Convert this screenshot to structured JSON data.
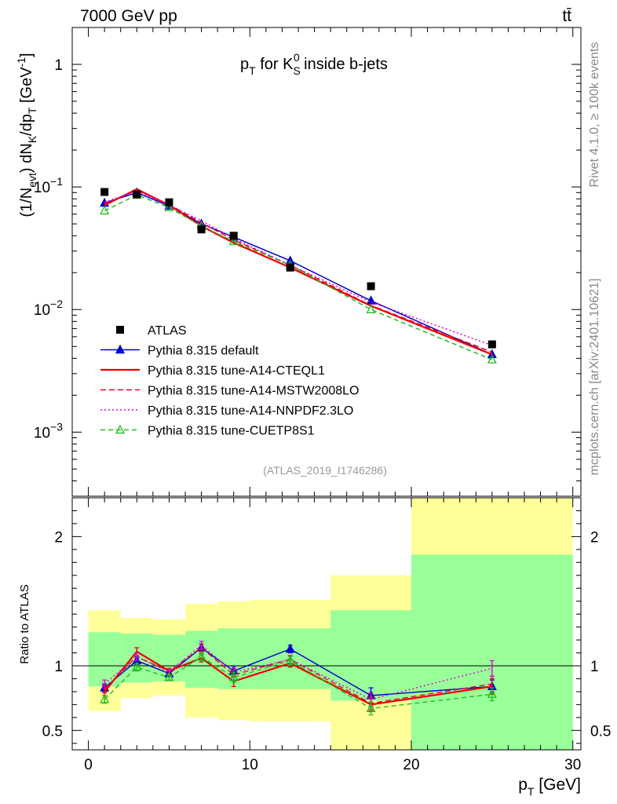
{
  "header": {
    "energy_label": "7000 GeV pp",
    "process_label": "tt̄"
  },
  "side_labels": {
    "rivet": "Rivet 4.1.0, ≥ 100k events",
    "source": "mcplots.cern.ch [arXiv:2401.10621]"
  },
  "analysis_id": "(ATLAS_2019_I1746286)",
  "chart_data": [
    {
      "panel": "main",
      "type": "line",
      "title": "pT for KS0 inside b-jets",
      "title_parts": {
        "p": "p",
        "T": "T",
        "mid": " for ",
        "K": "K",
        "S": "S",
        "zero": "0",
        "tail": " inside b-jets"
      },
      "ylabel": "(1/Nevt) dNK/dpT [GeV-1]",
      "ylabel_parts": {
        "a": "(1/N",
        "b": "evt",
        "c": ") dN",
        "d": "K",
        "e": "/dp",
        "f": "T",
        "g": " [GeV",
        "h": "-1",
        "i": "]"
      },
      "yscale": "log",
      "ylim": [
        0.0003,
        2.0
      ],
      "xlim": [
        -1,
        30.5
      ],
      "ytick_labels": [
        {
          "value": 1.0,
          "base": "1",
          "exp": ""
        },
        {
          "value": 0.1,
          "base": "10",
          "exp": "−1"
        },
        {
          "value": 0.01,
          "base": "10",
          "exp": "−2"
        },
        {
          "value": 0.001,
          "base": "10",
          "exp": "−3"
        }
      ],
      "legend_position": "bottom-left",
      "data": {
        "name": "ATLAS",
        "x": [
          1,
          3,
          5,
          7,
          9,
          12.5,
          17.5,
          25
        ],
        "y": [
          0.091,
          0.087,
          0.075,
          0.045,
          0.04,
          0.022,
          0.0155,
          0.0052
        ]
      },
      "series": [
        {
          "name": "Pythia 8.315 default",
          "color": "#0000cc",
          "dash": "",
          "marker": "filled-triangle",
          "x": [
            1,
            3,
            5,
            7,
            9,
            12.5,
            17.5,
            25
          ],
          "y": [
            0.074,
            0.09,
            0.07,
            0.05,
            0.039,
            0.025,
            0.0118,
            0.0043
          ]
        },
        {
          "name": "Pythia 8.315 tune-A14-CTEQL1",
          "color": "#ee0000",
          "dash": "",
          "marker": "none",
          "x": [
            1,
            3,
            5,
            7,
            9,
            12.5,
            17.5,
            25
          ],
          "y": [
            0.071,
            0.096,
            0.071,
            0.048,
            0.035,
            0.022,
            0.0107,
            0.0043
          ]
        },
        {
          "name": "Pythia 8.315 tune-A14-MSTW2008LO",
          "color": "#ee0033",
          "dash": "7,4",
          "marker": "none",
          "x": [
            1,
            3,
            5,
            7,
            9,
            12.5,
            17.5,
            25
          ],
          "y": [
            0.073,
            0.094,
            0.072,
            0.051,
            0.037,
            0.023,
            0.0108,
            0.0045
          ]
        },
        {
          "name": "Pythia 8.315 tune-A14-NNPDF2.3LO",
          "color": "#dd00dd",
          "dash": "2,3",
          "marker": "none",
          "x": [
            1,
            3,
            5,
            7,
            9,
            12.5,
            17.5,
            25
          ],
          "y": [
            0.075,
            0.093,
            0.071,
            0.053,
            0.038,
            0.023,
            0.0115,
            0.0051
          ]
        },
        {
          "name": "Pythia 8.315 tune-CUETP8S1",
          "color": "#22bb22",
          "dash": "6,4",
          "marker": "open-triangle",
          "x": [
            1,
            3,
            5,
            7,
            9,
            12.5,
            17.5,
            25
          ],
          "y": [
            0.064,
            0.086,
            0.068,
            0.048,
            0.036,
            0.023,
            0.01,
            0.0039
          ]
        }
      ]
    },
    {
      "panel": "ratio",
      "type": "line",
      "ylabel": "Ratio to ATLAS",
      "xlabel": "pT [GeV]",
      "xlabel_parts": {
        "p": "p",
        "T": "T",
        "unit": " [GeV]"
      },
      "ylim": [
        0.35,
        2.3
      ],
      "xlim": [
        -1,
        30.5
      ],
      "reference_line": 1.0,
      "yticks": [
        0.5,
        1,
        2
      ],
      "ytick_labels": [
        "0.5",
        "1",
        "2"
      ],
      "xticks": [
        0,
        10,
        20,
        30
      ],
      "xtick_labels": [
        "0",
        "10",
        "20",
        "30"
      ],
      "bands": [
        {
          "x0": 0,
          "x1": 2,
          "yellow": [
            0.65,
            1.43
          ],
          "green": [
            0.84,
            1.26
          ]
        },
        {
          "x0": 2,
          "x1": 4,
          "yellow": [
            0.75,
            1.37
          ],
          "green": [
            0.87,
            1.25
          ]
        },
        {
          "x0": 4,
          "x1": 6,
          "yellow": [
            0.77,
            1.36
          ],
          "green": [
            0.88,
            1.24
          ]
        },
        {
          "x0": 6,
          "x1": 8,
          "yellow": [
            0.6,
            1.48
          ],
          "green": [
            0.83,
            1.27
          ]
        },
        {
          "x0": 8,
          "x1": 10,
          "yellow": [
            0.58,
            1.5
          ],
          "green": [
            0.82,
            1.29
          ]
        },
        {
          "x0": 10,
          "x1": 15,
          "yellow": [
            0.57,
            1.51
          ],
          "green": [
            0.82,
            1.29
          ]
        },
        {
          "x0": 15,
          "x1": 20,
          "yellow": [
            0.3,
            1.7
          ],
          "green": [
            0.73,
            1.43
          ]
        },
        {
          "x0": 20,
          "x1": 30,
          "yellow": [
            0.3,
            2.5
          ],
          "green": [
            0.3,
            1.86
          ]
        }
      ],
      "series": [
        {
          "name": "Pythia 8.315 default",
          "x": [
            1,
            3,
            5,
            7,
            9,
            12.5,
            17.5,
            25
          ],
          "y": [
            0.83,
            1.04,
            0.94,
            1.14,
            0.96,
            1.13,
            0.77,
            0.84
          ],
          "err": [
            0.03,
            0.03,
            0.02,
            0.03,
            0.04,
            0.03,
            0.06,
            0.05
          ]
        },
        {
          "name": "Pythia 8.315 tune-A14-CTEQL1",
          "x": [
            1,
            3,
            5,
            7,
            9,
            12.5,
            17.5,
            25
          ],
          "y": [
            0.8,
            1.11,
            0.96,
            1.06,
            0.88,
            1.02,
            0.7,
            0.84
          ],
          "err": [
            0.03,
            0.03,
            0.02,
            0.03,
            0.04,
            0.03,
            0.05,
            0.06
          ]
        },
        {
          "name": "Pythia 8.315 tune-A14-MSTW2008LO",
          "x": [
            1,
            3,
            5,
            7,
            9,
            12.5,
            17.5,
            25
          ],
          "y": [
            0.82,
            1.07,
            0.96,
            1.14,
            0.93,
            1.05,
            0.71,
            0.86
          ],
          "err": [
            0.03,
            0.03,
            0.02,
            0.03,
            0.04,
            0.03,
            0.05,
            0.06
          ]
        },
        {
          "name": "Pythia 8.315 tune-A14-NNPDF2.3LO",
          "x": [
            1,
            3,
            5,
            7,
            9,
            12.5,
            17.5,
            25
          ],
          "y": [
            0.86,
            1.07,
            0.95,
            1.16,
            0.95,
            1.05,
            0.74,
            0.98
          ],
          "err": [
            0.03,
            0.03,
            0.02,
            0.03,
            0.04,
            0.03,
            0.05,
            0.06
          ]
        },
        {
          "name": "Pythia 8.315 tune-CUETP8S1",
          "x": [
            1,
            3,
            5,
            7,
            9,
            12.5,
            17.5,
            25
          ],
          "y": [
            0.74,
            0.99,
            0.91,
            1.07,
            0.91,
            1.04,
            0.67,
            0.78
          ],
          "err": [
            0.03,
            0.03,
            0.02,
            0.03,
            0.04,
            0.03,
            0.05,
            0.05
          ]
        }
      ]
    }
  ]
}
